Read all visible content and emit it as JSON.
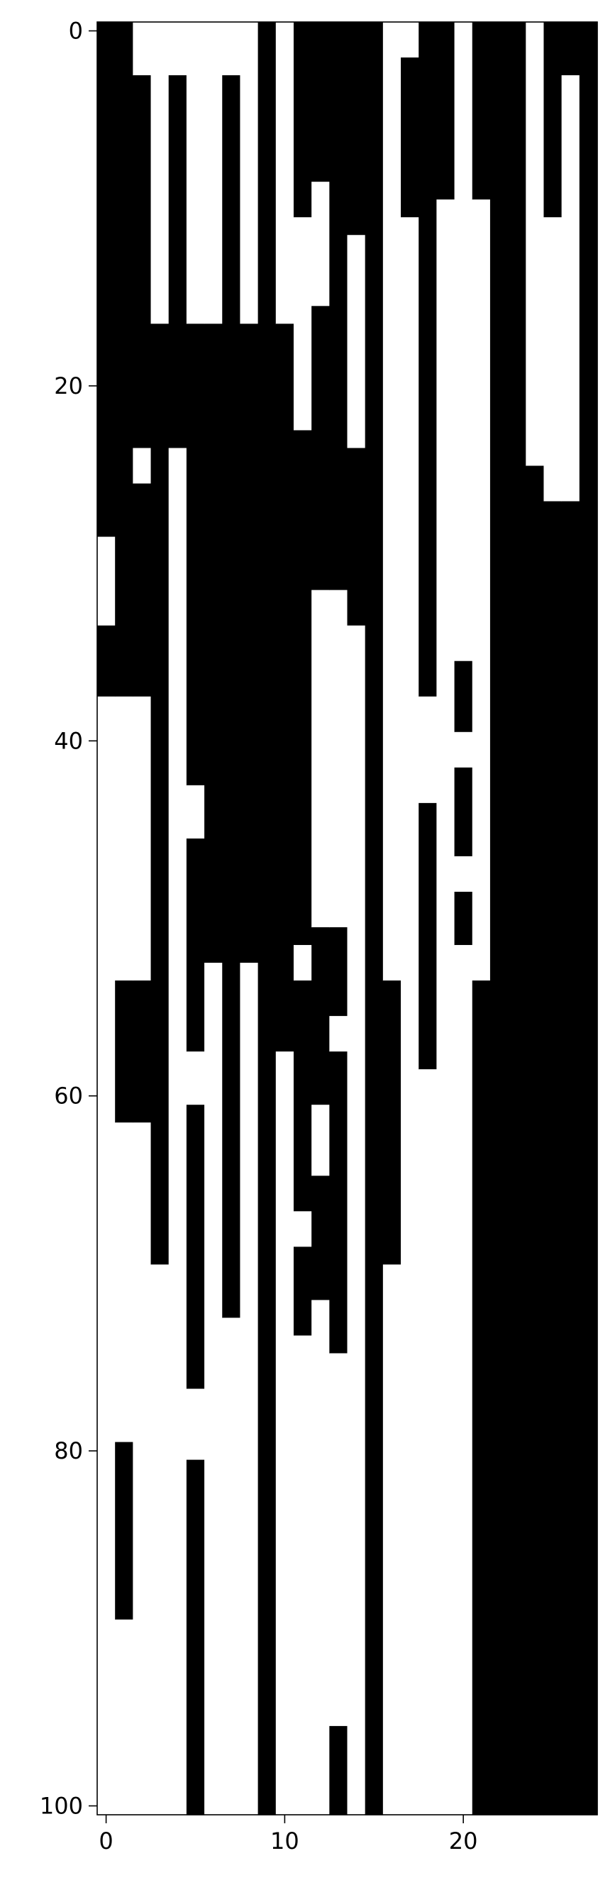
{
  "chart_data": {
    "type": "heatmap",
    "title": "",
    "xlabel": "",
    "ylabel": "",
    "n_cols": 28,
    "n_rows": 101,
    "xlim": [
      -0.5,
      27.5
    ],
    "ylim": [
      100.5,
      -0.5
    ],
    "cmap": {
      "0": "#ffffff",
      "1": "#000000"
    },
    "x_ticks": [
      0,
      10,
      20
    ],
    "x_tick_labels": [
      "0",
      "10",
      "20"
    ],
    "y_ticks": [
      0,
      20,
      40,
      60,
      80,
      100
    ],
    "y_tick_labels": [
      "0",
      "20",
      "40",
      "60",
      "80",
      "100"
    ],
    "runs_note": "runs[c] = [start_row, end_row, value] vertical runs for column c, value 1=black 0=white",
    "runs": [
      [
        [
          0,
          33,
          1
        ],
        [
          34,
          100,
          0
        ]
      ],
      [
        [
          0,
          37,
          1
        ],
        [
          38,
          73,
          0
        ],
        [
          74,
          100,
          0
        ]
      ],
      [
        [
          0,
          2,
          1
        ],
        [
          3,
          4,
          0
        ],
        [
          5,
          16,
          1
        ],
        [
          17,
          23,
          1
        ],
        [
          24,
          25,
          1
        ],
        [
          26,
          34,
          1
        ],
        [
          35,
          37,
          1
        ],
        [
          38,
          53,
          0
        ],
        [
          54,
          61,
          1
        ],
        [
          62,
          73,
          0
        ],
        [
          74,
          100,
          0
        ]
      ],
      [
        [
          0,
          2,
          0
        ],
        [
          3,
          16,
          0
        ],
        [
          17,
          23,
          1
        ],
        [
          24,
          26,
          1
        ],
        [
          27,
          37,
          1
        ],
        [
          38,
          69,
          0
        ],
        [
          70,
          100,
          0
        ]
      ],
      [
        [
          0,
          2,
          0
        ],
        [
          3,
          16,
          1
        ],
        [
          17,
          23,
          1
        ],
        [
          24,
          42,
          0
        ],
        [
          43,
          45,
          0
        ],
        [
          46,
          100,
          0
        ]
      ],
      [
        [
          0,
          16,
          0
        ],
        [
          17,
          23,
          1
        ],
        [
          24,
          50,
          1
        ],
        [
          51,
          53,
          1
        ],
        [
          54,
          57,
          1
        ],
        [
          58,
          60,
          0
        ],
        [
          61,
          76,
          1
        ],
        [
          77,
          80,
          0
        ],
        [
          81,
          100,
          1
        ]
      ],
      [
        [
          0,
          15,
          0
        ],
        [
          16,
          16,
          1
        ],
        [
          17,
          36,
          1
        ],
        [
          37,
          49,
          1
        ],
        [
          50,
          51,
          1
        ],
        [
          52,
          100,
          0
        ]
      ],
      [
        [
          0,
          2,
          0
        ],
        [
          3,
          15,
          0
        ],
        [
          16,
          36,
          1
        ],
        [
          37,
          49,
          0
        ],
        [
          50,
          51,
          1
        ],
        [
          52,
          72,
          1
        ],
        [
          73,
          100,
          0
        ]
      ],
      [
        [
          0,
          15,
          0
        ],
        [
          16,
          16,
          1
        ],
        [
          17,
          51,
          1
        ],
        [
          52,
          100,
          0
        ]
      ],
      [
        [
          0,
          100,
          1
        ]
      ],
      [
        [
          0,
          15,
          0
        ],
        [
          16,
          49,
          1
        ],
        [
          50,
          57,
          1
        ],
        [
          58,
          100,
          0
        ]
      ],
      [
        [
          0,
          15,
          1
        ],
        [
          16,
          22,
          1
        ],
        [
          23,
          30,
          1
        ],
        [
          31,
          100,
          1
        ]
      ],
      [
        [
          0,
          15,
          1
        ],
        [
          16,
          22,
          0
        ],
        [
          23,
          30,
          1
        ],
        [
          31,
          57,
          0
        ],
        [
          58,
          100,
          0
        ]
      ],
      [
        [
          0,
          2,
          1
        ],
        [
          3,
          12,
          1
        ],
        [
          13,
          30,
          1
        ],
        [
          31,
          100,
          0
        ]
      ],
      [
        [
          0,
          10,
          1
        ],
        [
          11,
          22,
          1
        ],
        [
          23,
          32,
          1
        ],
        [
          33,
          100,
          0
        ]
      ],
      [
        [
          0,
          100,
          1
        ]
      ],
      [
        [
          0,
          53,
          0
        ],
        [
          54,
          69,
          1
        ],
        [
          70,
          100,
          0
        ]
      ],
      [
        [
          0,
          1,
          0
        ],
        [
          2,
          10,
          1
        ],
        [
          11,
          53,
          0
        ],
        [
          54,
          100,
          0
        ]
      ],
      [
        [
          0,
          37,
          1
        ],
        [
          38,
          43,
          0
        ],
        [
          44,
          100,
          1
        ]
      ],
      [
        [
          0,
          9,
          1
        ],
        [
          10,
          100,
          0
        ]
      ],
      [
        [
          0,
          12,
          0
        ],
        [
          13,
          100,
          0
        ]
      ],
      [
        [
          0,
          9,
          1
        ],
        [
          10,
          16,
          0
        ],
        [
          17,
          100,
          1
        ]
      ],
      [
        [
          0,
          12,
          1
        ],
        [
          13,
          100,
          1
        ]
      ],
      [
        [
          0,
          100,
          1
        ]
      ],
      [
        [
          0,
          64,
          1
        ],
        [
          65,
          100,
          1
        ]
      ],
      [
        [
          0,
          2,
          1
        ],
        [
          3,
          100,
          1
        ]
      ],
      [
        [
          0,
          2,
          1
        ],
        [
          3,
          100,
          1
        ]
      ],
      [
        [
          0,
          100,
          1
        ]
      ]
    ],
    "patches_note": "patches = [col, start_row, end_row, value] overrides applied after runs",
    "patches": [
      [
        0,
        29,
        33,
        0
      ],
      [
        0,
        34,
        37,
        1
      ],
      [
        0,
        38,
        100,
        0
      ],
      [
        0,
        62,
        73,
        0
      ],
      [
        1,
        0,
        37,
        1
      ],
      [
        1,
        38,
        53,
        0
      ],
      [
        1,
        54,
        61,
        1
      ],
      [
        1,
        62,
        73,
        0
      ],
      [
        1,
        74,
        79,
        0
      ],
      [
        1,
        80,
        89,
        1
      ],
      [
        1,
        90,
        100,
        0
      ],
      [
        2,
        0,
        2,
        0
      ],
      [
        2,
        3,
        23,
        1
      ],
      [
        2,
        24,
        25,
        0
      ],
      [
        2,
        26,
        37,
        1
      ],
      [
        3,
        0,
        16,
        0
      ],
      [
        3,
        17,
        37,
        1
      ],
      [
        3,
        38,
        69,
        1
      ],
      [
        3,
        70,
        100,
        0
      ],
      [
        4,
        0,
        2,
        0
      ],
      [
        4,
        3,
        16,
        1
      ],
      [
        4,
        17,
        23,
        1
      ],
      [
        4,
        24,
        41,
        0
      ],
      [
        4,
        24,
        100,
        0
      ],
      [
        5,
        0,
        16,
        0
      ],
      [
        5,
        17,
        23,
        1
      ],
      [
        5,
        24,
        42,
        1
      ],
      [
        5,
        43,
        45,
        0
      ],
      [
        5,
        46,
        50,
        1
      ],
      [
        5,
        51,
        53,
        1
      ],
      [
        5,
        54,
        57,
        1
      ],
      [
        5,
        58,
        60,
        0
      ],
      [
        5,
        61,
        76,
        1
      ],
      [
        5,
        77,
        80,
        0
      ],
      [
        5,
        81,
        100,
        1
      ],
      [
        6,
        0,
        16,
        0
      ],
      [
        6,
        17,
        52,
        1
      ],
      [
        6,
        53,
        100,
        0
      ],
      [
        7,
        0,
        2,
        0
      ],
      [
        7,
        3,
        16,
        1
      ],
      [
        7,
        17,
        36,
        1
      ],
      [
        7,
        37,
        49,
        1
      ],
      [
        7,
        50,
        51,
        1
      ],
      [
        7,
        52,
        72,
        1
      ],
      [
        7,
        73,
        100,
        0
      ],
      [
        8,
        0,
        16,
        0
      ],
      [
        8,
        17,
        52,
        1
      ],
      [
        8,
        53,
        100,
        0
      ],
      [
        9,
        0,
        100,
        1
      ],
      [
        10,
        0,
        16,
        0
      ],
      [
        10,
        17,
        49,
        1
      ],
      [
        10,
        50,
        57,
        1
      ],
      [
        10,
        58,
        100,
        0
      ],
      [
        11,
        0,
        10,
        1
      ],
      [
        11,
        11,
        22,
        0
      ],
      [
        11,
        23,
        49,
        1
      ],
      [
        11,
        50,
        51,
        1
      ],
      [
        11,
        52,
        53,
        0
      ],
      [
        11,
        54,
        55,
        1
      ],
      [
        11,
        56,
        57,
        1
      ],
      [
        11,
        58,
        61,
        1
      ],
      [
        11,
        62,
        62,
        1
      ],
      [
        11,
        63,
        66,
        1
      ],
      [
        11,
        67,
        68,
        0
      ],
      [
        11,
        69,
        73,
        1
      ],
      [
        11,
        74,
        100,
        0
      ],
      [
        12,
        0,
        8,
        1
      ],
      [
        12,
        9,
        15,
        0
      ],
      [
        12,
        16,
        22,
        1
      ],
      [
        12,
        23,
        31,
        1
      ],
      [
        12,
        32,
        55,
        0
      ],
      [
        12,
        51,
        51,
        1
      ],
      [
        12,
        52,
        60,
        1
      ],
      [
        12,
        61,
        64,
        0
      ],
      [
        12,
        65,
        68,
        1
      ],
      [
        12,
        69,
        100,
        0
      ],
      [
        12,
        69,
        71,
        1
      ],
      [
        13,
        0,
        2,
        1
      ],
      [
        13,
        3,
        15,
        1
      ],
      [
        13,
        16,
        31,
        1
      ],
      [
        13,
        32,
        49,
        0
      ],
      [
        13,
        51,
        55,
        1
      ],
      [
        13,
        56,
        57,
        0
      ],
      [
        13,
        58,
        74,
        1
      ],
      [
        13,
        75,
        95,
        0
      ],
      [
        13,
        96,
        100,
        1
      ],
      [
        14,
        0,
        11,
        1
      ],
      [
        14,
        12,
        23,
        0
      ],
      [
        14,
        24,
        33,
        1
      ],
      [
        14,
        34,
        100,
        0
      ],
      [
        15,
        0,
        100,
        1
      ],
      [
        16,
        0,
        53,
        0
      ],
      [
        16,
        54,
        69,
        1
      ],
      [
        16,
        70,
        100,
        0
      ],
      [
        17,
        0,
        1,
        0
      ],
      [
        17,
        2,
        10,
        1
      ],
      [
        17,
        11,
        53,
        0
      ],
      [
        17,
        54,
        100,
        0
      ],
      [
        18,
        0,
        37,
        1
      ],
      [
        18,
        38,
        43,
        0
      ],
      [
        18,
        44,
        100,
        1
      ],
      [
        18,
        59,
        100,
        0
      ],
      [
        19,
        0,
        9,
        1
      ],
      [
        19,
        10,
        36,
        0
      ],
      [
        19,
        37,
        50,
        0
      ],
      [
        19,
        51,
        100,
        0
      ],
      [
        19,
        37,
        100,
        0
      ],
      [
        20,
        0,
        12,
        0
      ],
      [
        20,
        13,
        35,
        0
      ],
      [
        20,
        36,
        39,
        1
      ],
      [
        20,
        40,
        41,
        0
      ],
      [
        20,
        42,
        46,
        1
      ],
      [
        20,
        47,
        48,
        0
      ],
      [
        20,
        49,
        51,
        1
      ],
      [
        20,
        52,
        61,
        0
      ],
      [
        20,
        62,
        72,
        1
      ],
      [
        20,
        73,
        77,
        1
      ],
      [
        20,
        78,
        100,
        1
      ],
      [
        20,
        62,
        100,
        0
      ],
      [
        21,
        0,
        9,
        1
      ],
      [
        21,
        10,
        16,
        0
      ],
      [
        21,
        17,
        53,
        0
      ],
      [
        21,
        54,
        100,
        1
      ],
      [
        22,
        0,
        9,
        1
      ],
      [
        22,
        10,
        100,
        1
      ],
      [
        23,
        0,
        100,
        1
      ],
      [
        24,
        0,
        24,
        0
      ],
      [
        24,
        25,
        100,
        1
      ],
      [
        25,
        0,
        10,
        1
      ],
      [
        25,
        11,
        26,
        0
      ],
      [
        25,
        27,
        100,
        1
      ],
      [
        26,
        0,
        2,
        1
      ],
      [
        26,
        3,
        26,
        0
      ],
      [
        26,
        27,
        100,
        1
      ],
      [
        27,
        0,
        2,
        1
      ],
      [
        27,
        3,
        100,
        1
      ]
    ]
  }
}
